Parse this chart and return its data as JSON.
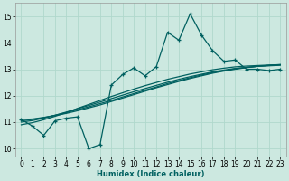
{
  "xlabel": "Humidex (Indice chaleur)",
  "bg_color": "#cce8e0",
  "grid_color": "#b0d8cc",
  "line_color": "#006060",
  "xlim": [
    -0.5,
    23.5
  ],
  "ylim": [
    9.7,
    15.5
  ],
  "x_ticks": [
    0,
    1,
    2,
    3,
    4,
    5,
    6,
    7,
    8,
    9,
    10,
    11,
    12,
    13,
    14,
    15,
    16,
    17,
    18,
    19,
    20,
    21,
    22,
    23
  ],
  "y_ticks": [
    10,
    11,
    12,
    13,
    14,
    15
  ],
  "spiky_x": [
    0,
    1,
    2,
    3,
    4,
    5,
    6,
    7,
    8,
    9,
    10,
    11,
    12,
    13,
    14,
    15,
    16,
    17,
    18,
    19,
    20,
    21,
    22,
    23
  ],
  "spiky_y": [
    11.1,
    10.85,
    10.5,
    11.05,
    11.15,
    11.2,
    10.0,
    10.15,
    12.4,
    12.8,
    13.05,
    12.75,
    13.1,
    14.4,
    14.1,
    15.1,
    14.3,
    13.7,
    13.3,
    13.35,
    13.0,
    13.0,
    12.95,
    13.0
  ],
  "smooth1_y": [
    11.1,
    11.12,
    11.18,
    11.25,
    11.33,
    11.43,
    11.54,
    11.65,
    11.78,
    11.91,
    12.04,
    12.17,
    12.3,
    12.42,
    12.54,
    12.65,
    12.75,
    12.85,
    12.93,
    13.0,
    13.06,
    13.11,
    13.15,
    13.18
  ],
  "smooth2_y": [
    11.05,
    11.1,
    11.17,
    11.26,
    11.36,
    11.47,
    11.58,
    11.7,
    11.82,
    11.95,
    12.08,
    12.21,
    12.33,
    12.46,
    12.57,
    12.68,
    12.78,
    12.87,
    12.95,
    13.02,
    13.07,
    13.11,
    13.14,
    13.17
  ],
  "smooth3_y": [
    11.0,
    11.06,
    11.15,
    11.26,
    11.38,
    11.51,
    11.63,
    11.76,
    11.89,
    12.02,
    12.15,
    12.27,
    12.39,
    12.51,
    12.62,
    12.72,
    12.81,
    12.9,
    12.97,
    13.03,
    13.07,
    13.11,
    13.13,
    13.15
  ],
  "smooth4_y": [
    10.9,
    10.98,
    11.09,
    11.22,
    11.36,
    11.52,
    11.67,
    11.82,
    11.97,
    12.11,
    12.25,
    12.38,
    12.5,
    12.62,
    12.72,
    12.82,
    12.9,
    12.98,
    13.04,
    13.09,
    13.12,
    13.14,
    13.16,
    13.17
  ]
}
